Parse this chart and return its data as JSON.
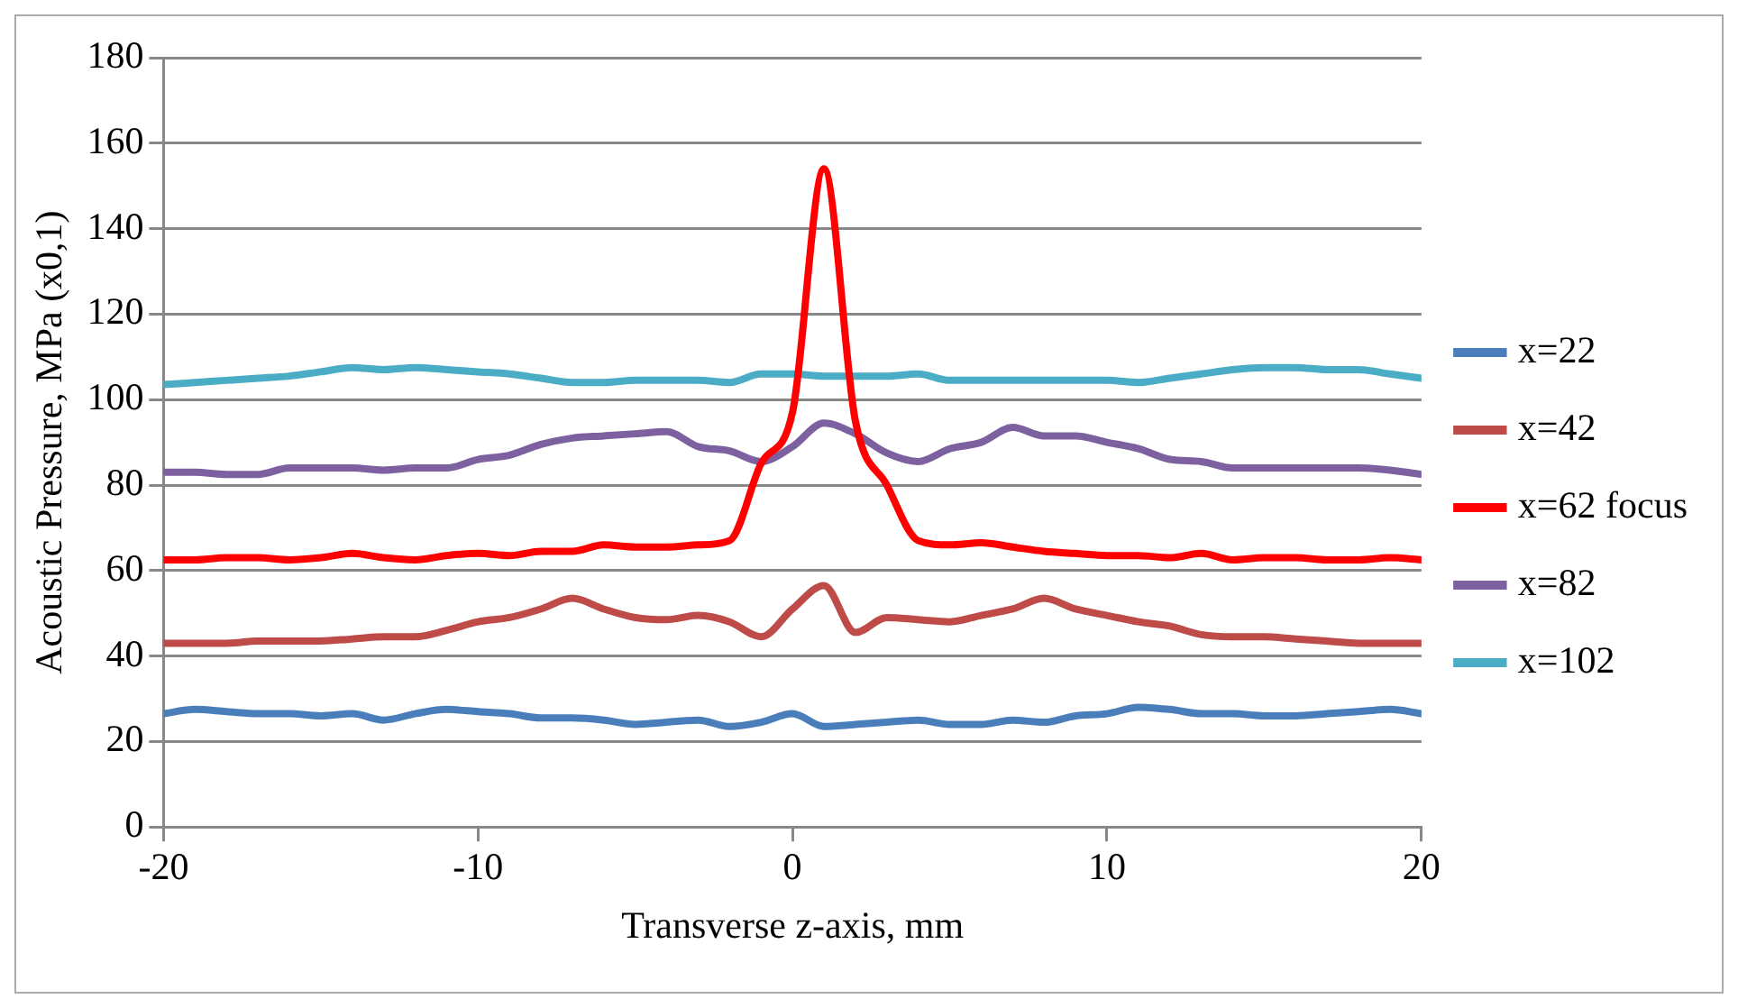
{
  "chart_data": {
    "type": "line",
    "xlabel": "Transverse z-axis, mm",
    "ylabel": "Acoustic Pressure, MPa (x0,1)",
    "x": [
      -20,
      -19,
      -18,
      -17,
      -16,
      -15,
      -14,
      -13,
      -12,
      -11,
      -10,
      -9,
      -8,
      -7,
      -6,
      -5,
      -4,
      -3,
      -2,
      -1,
      0,
      1,
      2,
      3,
      4,
      5,
      6,
      7,
      8,
      9,
      10,
      11,
      12,
      13,
      14,
      15,
      16,
      17,
      18,
      19,
      20
    ],
    "series": [
      {
        "name": "x=22",
        "color": "#4a7ebb",
        "values": [
          26.5,
          27.5,
          27,
          26.5,
          26.5,
          26,
          26.5,
          25,
          26.5,
          27.5,
          27,
          26.5,
          25.5,
          25.5,
          25,
          24,
          24.5,
          25,
          23.5,
          24.5,
          26.5,
          23.5,
          24,
          24.5,
          25,
          24,
          24,
          25,
          24.5,
          26,
          26.5,
          28,
          27.5,
          26.5,
          26.5,
          26,
          26,
          26.5,
          27,
          27.5,
          26.5
        ]
      },
      {
        "name": "x=42",
        "color": "#be4b48",
        "values": [
          43,
          43,
          43,
          43.5,
          43.5,
          43.5,
          44,
          44.5,
          44.5,
          46,
          48,
          49,
          51,
          53.5,
          51,
          49,
          48.5,
          49.5,
          48,
          44.5,
          51,
          56.5,
          45.5,
          49,
          48.5,
          48,
          49.5,
          51,
          53.5,
          51,
          49.5,
          48,
          47,
          45,
          44.5,
          44.5,
          44,
          43.5,
          43,
          43,
          43
        ]
      },
      {
        "name": "x=62 focus",
        "color": "#ff0000",
        "values": [
          62.5,
          62.5,
          63,
          63,
          62.5,
          63,
          64,
          63,
          62.5,
          63.5,
          64,
          63.5,
          64.5,
          64.5,
          66,
          65.5,
          65.5,
          66,
          67,
          85,
          97,
          154,
          95,
          80,
          67,
          66,
          66.5,
          65.5,
          64.5,
          64,
          63.5,
          63.5,
          63,
          64,
          62.5,
          63,
          63,
          62.5,
          62.5,
          63,
          62.5
        ]
      },
      {
        "name": "x=82",
        "color": "#7d60a0",
        "values": [
          83,
          83,
          82.5,
          82.5,
          84,
          84,
          84,
          83.5,
          84,
          84,
          86,
          87,
          89.5,
          91,
          91.5,
          92,
          92.5,
          89,
          88,
          85.5,
          89,
          94.5,
          92,
          87.5,
          85.5,
          88.5,
          90,
          93.5,
          91.5,
          91.5,
          90,
          88.5,
          86,
          85.5,
          84,
          84,
          84,
          84,
          84,
          83.5,
          82.5
        ]
      },
      {
        "name": "x=102",
        "color": "#4bacc6",
        "values": [
          103.5,
          104,
          104.5,
          105,
          105.5,
          106.5,
          107.5,
          107,
          107.5,
          107,
          106.5,
          106,
          105,
          104,
          104,
          104.5,
          104.5,
          104.5,
          104,
          106,
          106,
          105.5,
          105.5,
          105.5,
          106,
          104.5,
          104.5,
          104.5,
          104.5,
          104.5,
          104.5,
          104,
          105,
          106,
          107,
          107.5,
          107.5,
          107,
          107,
          106,
          105
        ]
      }
    ],
    "xlim": [
      -20,
      20
    ],
    "xticks": [
      -20,
      -10,
      0,
      10,
      20
    ],
    "ylim": [
      0,
      180
    ],
    "yticks": [
      0,
      20,
      40,
      60,
      80,
      100,
      120,
      140,
      160,
      180
    ],
    "grid": "y",
    "legend": "right",
    "marker": "none",
    "line_style": "solid"
  }
}
